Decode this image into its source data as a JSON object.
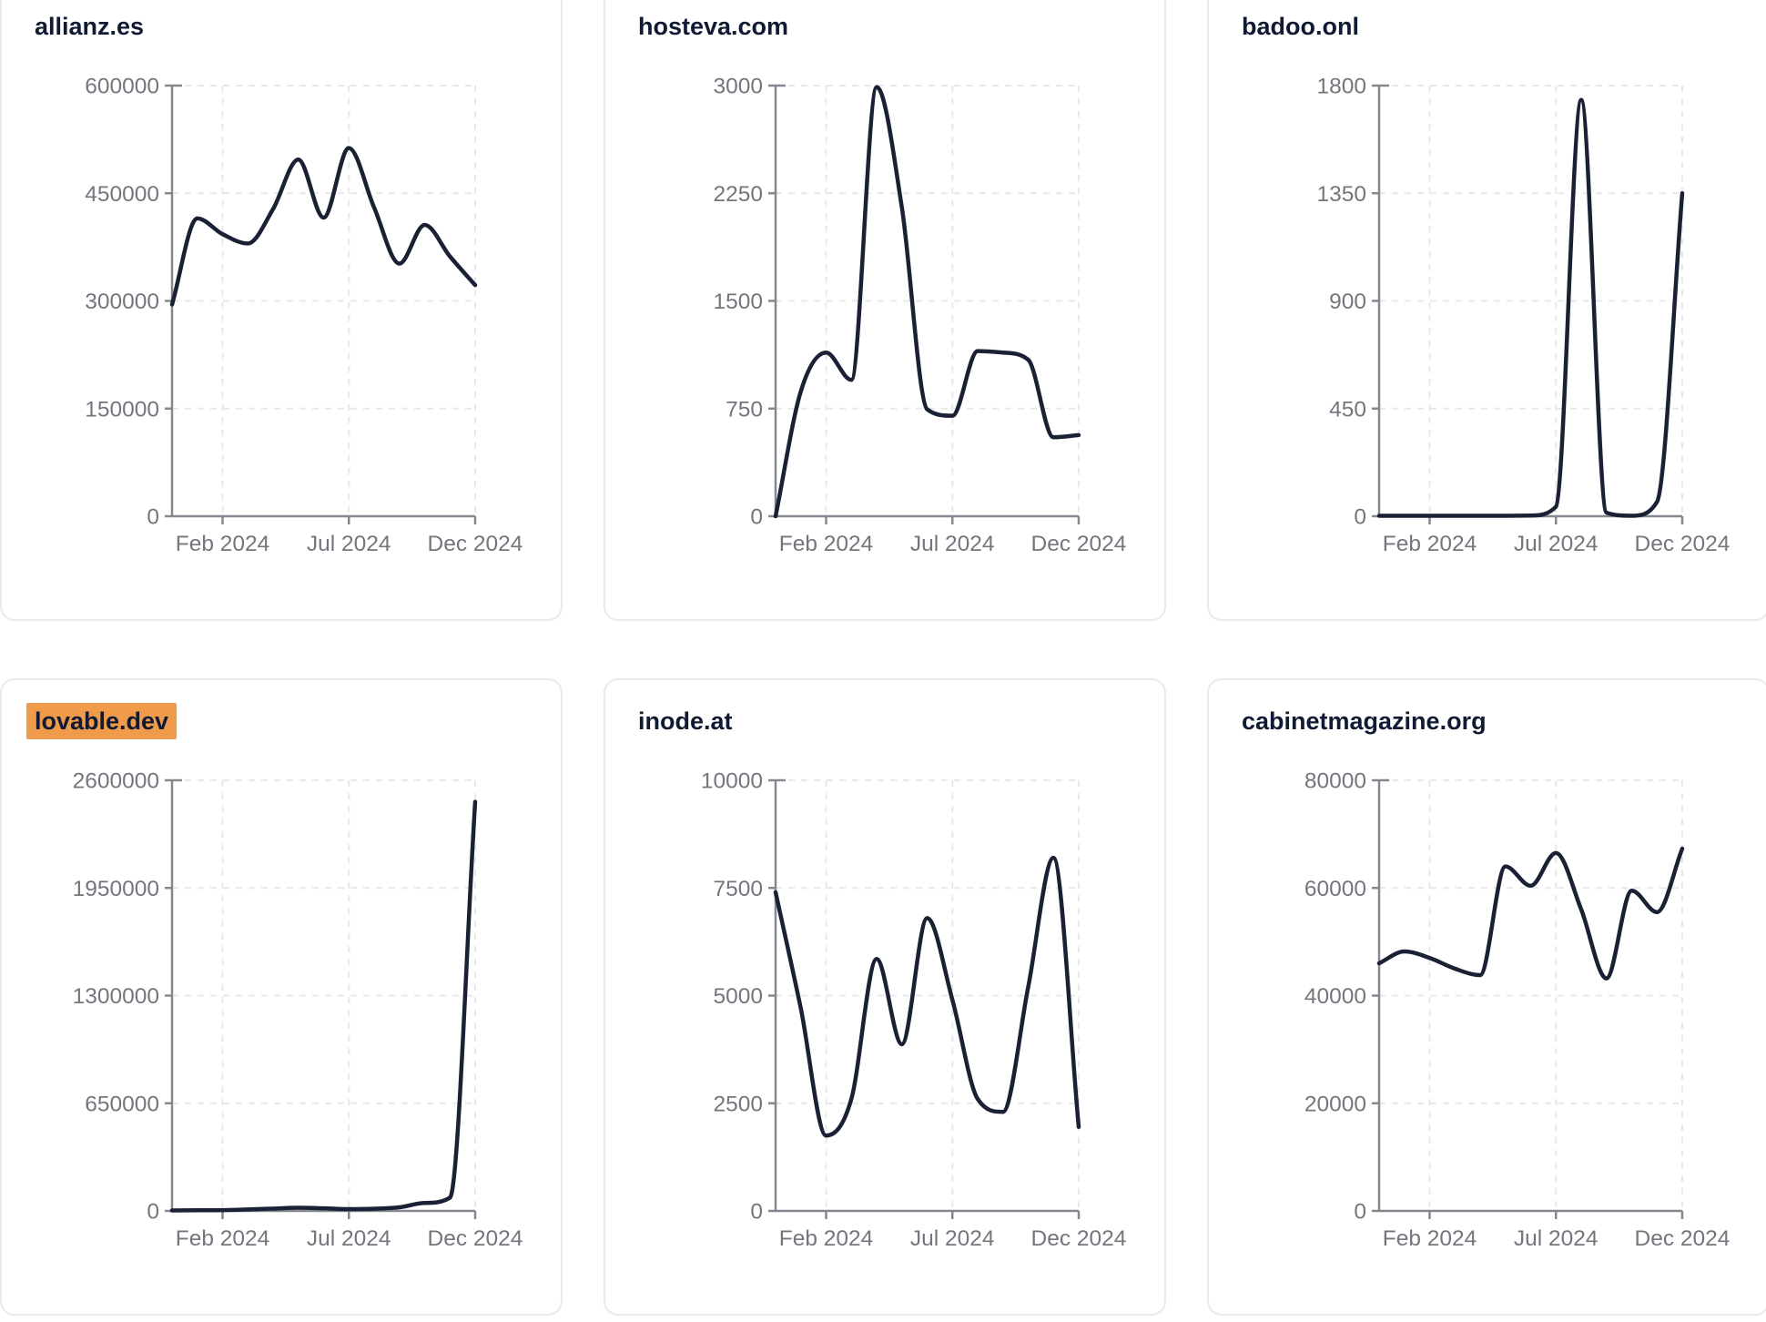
{
  "page": {
    "description": "Grid of six website traffic trend line charts",
    "background": "#ffffff"
  },
  "colors": {
    "line": "#1a2134",
    "title": "#101b33",
    "highlight": "#f09a4b",
    "axis": "#85888f",
    "tick_label": "#73767d",
    "grid_line": "#e7e8eb",
    "card_border": "#e9eaee"
  },
  "chart_data": [
    {
      "type": "line",
      "title": "allianz.es",
      "highlighted": false,
      "x": [
        "Dec 2023",
        "Jan 2024",
        "Feb 2024",
        "Mar 2024",
        "Apr 2024",
        "May 2024",
        "Jun 2024",
        "Jul 2024",
        "Aug 2024",
        "Sep 2024",
        "Oct 2024",
        "Nov 2024",
        "Dec 2024"
      ],
      "values": [
        295000,
        415000,
        393000,
        380000,
        428000,
        497000,
        416000,
        513000,
        430000,
        352000,
        406000,
        362000,
        322000
      ],
      "ylim": [
        0,
        600000
      ],
      "y_ticks": [
        0,
        150000,
        300000,
        450000,
        600000
      ],
      "x_tick_labels": [
        "Feb 2024",
        "Jul 2024",
        "Dec 2024"
      ],
      "x_tick_indices": [
        2,
        7,
        12
      ],
      "grid": true,
      "legend": "none"
    },
    {
      "type": "line",
      "title": "hosteva.com",
      "highlighted": false,
      "x": [
        "Dec 2023",
        "Jan 2024",
        "Feb 2024",
        "Mar 2024",
        "Apr 2024",
        "May 2024",
        "Jun 2024",
        "Jul 2024",
        "Aug 2024",
        "Sep 2024",
        "Oct 2024",
        "Nov 2024",
        "Dec 2024"
      ],
      "values": [
        0,
        870,
        1140,
        950,
        2990,
        2150,
        745,
        700,
        1150,
        1140,
        1090,
        550,
        565
      ],
      "ylim": [
        0,
        3000
      ],
      "y_ticks": [
        0,
        750,
        1500,
        2250,
        3000
      ],
      "x_tick_labels": [
        "Feb 2024",
        "Jul 2024",
        "Dec 2024"
      ],
      "x_tick_indices": [
        2,
        7,
        12
      ],
      "grid": true,
      "legend": "none"
    },
    {
      "type": "line",
      "title": "badoo.onl",
      "highlighted": false,
      "x": [
        "Dec 2023",
        "Jan 2024",
        "Feb 2024",
        "Mar 2024",
        "Apr 2024",
        "May 2024",
        "Jun 2024",
        "Jul 2024",
        "Aug 2024",
        "Sep 2024",
        "Oct 2024",
        "Nov 2024",
        "Dec 2024"
      ],
      "values": [
        2,
        2,
        2,
        2,
        2,
        2,
        3,
        40,
        1740,
        15,
        2,
        60,
        1350
      ],
      "ylim": [
        0,
        1800
      ],
      "y_ticks": [
        0,
        450,
        900,
        1350,
        1800
      ],
      "x_tick_labels": [
        "Feb 2024",
        "Jul 2024",
        "Dec 2024"
      ],
      "x_tick_indices": [
        2,
        7,
        12
      ],
      "grid": true,
      "legend": "none"
    },
    {
      "type": "line",
      "title": "lovable.dev",
      "highlighted": true,
      "x": [
        "Dec 2023",
        "Jan 2024",
        "Feb 2024",
        "Mar 2024",
        "Apr 2024",
        "May 2024",
        "Jun 2024",
        "Jul 2024",
        "Aug 2024",
        "Sep 2024",
        "Oct 2024",
        "Nov 2024",
        "Dec 2024"
      ],
      "values": [
        3000,
        4000,
        5000,
        9000,
        14000,
        19000,
        16000,
        11000,
        13000,
        22000,
        48000,
        80000,
        2470000
      ],
      "ylim": [
        0,
        2600000
      ],
      "y_ticks": [
        0,
        650000,
        1300000,
        1950000,
        2600000
      ],
      "x_tick_labels": [
        "Feb 2024",
        "Jul 2024",
        "Dec 2024"
      ],
      "x_tick_indices": [
        2,
        7,
        12
      ],
      "grid": true,
      "legend": "none"
    },
    {
      "type": "line",
      "title": "inode.at",
      "highlighted": false,
      "x": [
        "Dec 2023",
        "Jan 2024",
        "Feb 2024",
        "Mar 2024",
        "Apr 2024",
        "May 2024",
        "Jun 2024",
        "Jul 2024",
        "Aug 2024",
        "Sep 2024",
        "Oct 2024",
        "Nov 2024",
        "Dec 2024"
      ],
      "values": [
        7400,
        4700,
        1750,
        2600,
        5850,
        3870,
        6800,
        4900,
        2600,
        2300,
        5200,
        8200,
        1950
      ],
      "ylim": [
        0,
        10000
      ],
      "y_ticks": [
        0,
        2500,
        5000,
        7500,
        10000
      ],
      "x_tick_labels": [
        "Feb 2024",
        "Jul 2024",
        "Dec 2024"
      ],
      "x_tick_indices": [
        2,
        7,
        12
      ],
      "grid": true,
      "legend": "none"
    },
    {
      "type": "line",
      "title": "cabinetmagazine.org",
      "highlighted": false,
      "x": [
        "Dec 2023",
        "Jan 2024",
        "Feb 2024",
        "Mar 2024",
        "Apr 2024",
        "May 2024",
        "Jun 2024",
        "Jul 2024",
        "Aug 2024",
        "Sep 2024",
        "Oct 2024",
        "Nov 2024",
        "Dec 2024"
      ],
      "values": [
        46000,
        48200,
        47000,
        45000,
        43800,
        64000,
        60400,
        66500,
        56000,
        43200,
        59500,
        55500,
        67300
      ],
      "ylim": [
        0,
        80000
      ],
      "y_ticks": [
        0,
        20000,
        40000,
        60000,
        80000
      ],
      "x_tick_labels": [
        "Feb 2024",
        "Jul 2024",
        "Dec 2024"
      ],
      "x_tick_indices": [
        2,
        7,
        12
      ],
      "grid": true,
      "legend": "none"
    }
  ]
}
